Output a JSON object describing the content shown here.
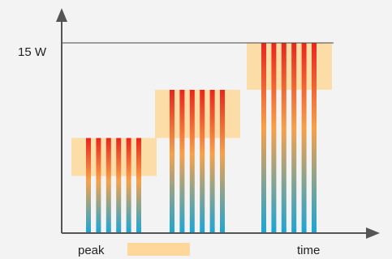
{
  "chart_data": {
    "type": "bar",
    "title": "",
    "xlabel": "time",
    "ylabel": "",
    "y_tick_labels": [
      "15 W"
    ],
    "legend": [
      {
        "label": "peak",
        "color": "#fdd89a"
      }
    ],
    "groups": [
      {
        "bars": 6,
        "bar_top_w": 7.5,
        "peak_band_w": [
          4.5,
          7.5
        ]
      },
      {
        "bars": 6,
        "bar_top_w": 11.3,
        "peak_band_w": [
          7.5,
          11.3
        ]
      },
      {
        "bars": 6,
        "bar_top_w": 15,
        "peak_band_w": [
          11.3,
          15
        ]
      }
    ],
    "ylim": [
      0,
      17.4
    ],
    "colors": {
      "bar_top": "#e8261c",
      "bar_mid": "#f6a14a",
      "bar_bottom": "#1aa6d6",
      "peak": "#fdd89a",
      "axis": "#444444"
    }
  }
}
